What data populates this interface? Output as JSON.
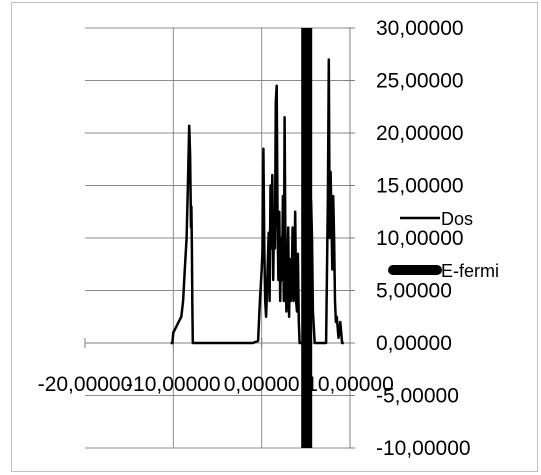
{
  "chart_data": {
    "type": "line",
    "title": "",
    "xlabel": "",
    "ylabel": "",
    "xlim": [
      -20,
      10
    ],
    "ylim": [
      -10,
      30
    ],
    "grid": true,
    "legend_placement": "right",
    "x_tick_labels": [
      "-20,00000",
      "-10,00000",
      "0,00000",
      "10,00000"
    ],
    "x_tick_values": [
      -20,
      -10,
      0,
      10
    ],
    "y_tick_labels": [
      "30,00000",
      "25,00000",
      "20,00000",
      "15,00000",
      "10,00000",
      "5,00000",
      "0,00000",
      "-5,00000",
      "-10,00000"
    ],
    "y_tick_values": [
      30,
      25,
      20,
      15,
      10,
      5,
      0,
      -5,
      -10
    ],
    "series": [
      {
        "name": "Dos",
        "color": "#000000",
        "x": [
          -10.3,
          -10.1,
          -10.0,
          -9.7,
          -9.4,
          -9.1,
          -8.9,
          -8.7,
          -8.5,
          -8.35,
          -8.2,
          -8.1,
          -8.0,
          -7.95,
          -7.9,
          -7.85,
          -7.8,
          -7.7,
          -7.6,
          -7.4,
          -7.2,
          -6.0,
          -3.0,
          -1.0,
          -0.4,
          -0.2,
          0.0,
          0.1,
          0.2,
          0.3,
          0.4,
          0.5,
          0.6,
          0.7,
          0.8,
          0.9,
          1.0,
          1.1,
          1.2,
          1.3,
          1.4,
          1.5,
          1.6,
          1.7,
          1.8,
          1.9,
          2.0,
          2.1,
          2.2,
          2.3,
          2.4,
          2.5,
          2.6,
          2.7,
          2.8,
          2.9,
          3.0,
          3.1,
          3.2,
          3.3,
          3.4,
          3.5,
          3.6,
          3.7,
          3.8,
          3.9,
          4.0,
          4.1,
          4.2,
          4.3,
          4.4,
          4.5,
          4.6,
          4.7,
          4.8,
          4.9,
          5.0,
          5.1,
          5.2,
          5.3,
          5.4,
          5.5,
          5.6,
          5.7,
          5.8,
          6.0,
          6.2,
          6.4,
          6.6,
          6.8,
          7.0,
          7.1,
          7.2,
          7.3,
          7.4,
          7.5,
          7.6,
          7.7,
          7.8,
          7.9,
          8.0,
          8.1,
          8.2,
          8.3,
          8.4,
          8.5,
          8.7,
          8.9,
          9.1,
          9.3
        ],
        "y": [
          0,
          0,
          1,
          1.5,
          2,
          2.5,
          4,
          7,
          10,
          15,
          20.7,
          18,
          11,
          13,
          9,
          4,
          0,
          0,
          0,
          0,
          0,
          0,
          0,
          0,
          0.2,
          4,
          7,
          9,
          18.5,
          9,
          4,
          2.5,
          5,
          8,
          10.5,
          4,
          15,
          9,
          16,
          6,
          12,
          9,
          23,
          24.5,
          11,
          6,
          12.5,
          4,
          10,
          6,
          14,
          4,
          21.5,
          8,
          3,
          6,
          11,
          2.5,
          8,
          4,
          6,
          11,
          4,
          7,
          12.5,
          4,
          3,
          8.5,
          2,
          0,
          0,
          0,
          0,
          0,
          0,
          0,
          0,
          0,
          1,
          2,
          4,
          6,
          13.5,
          10,
          3,
          0,
          0,
          0,
          0,
          0,
          0,
          0,
          0,
          0,
          7,
          14,
          27,
          10,
          16.3,
          12,
          7,
          14,
          10,
          4,
          2,
          2.5,
          0.5,
          2,
          0,
          0
        ]
      },
      {
        "name": "E-fermi",
        "color": "#000000",
        "x": [
          5.1,
          5.1
        ],
        "y": [
          -10,
          30
        ]
      }
    ]
  }
}
